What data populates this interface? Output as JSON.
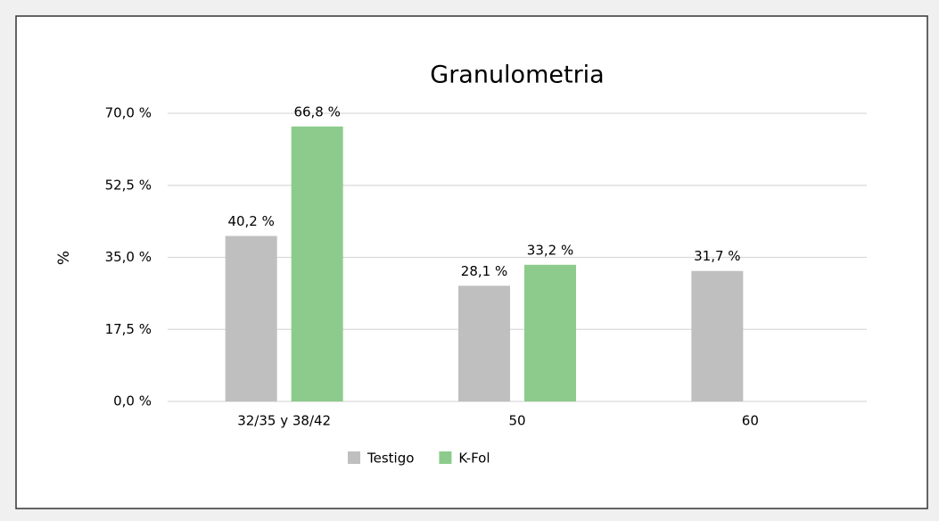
{
  "chart_data": {
    "type": "bar",
    "title": "Granulometria",
    "ylabel": "%",
    "categories": [
      "32/35 y 38/42",
      "50",
      "60"
    ],
    "series": [
      {
        "name": "Testigo",
        "color": "#bfbfbf",
        "values": [
          40.2,
          28.1,
          31.7
        ],
        "value_labels": [
          "40,2 %",
          "28,1 %",
          "31,7 %"
        ]
      },
      {
        "name": "K-Fol",
        "color": "#8ccb8c",
        "values": [
          66.8,
          33.2,
          null
        ],
        "value_labels": [
          "66,8 %",
          "33,2 %",
          null
        ]
      }
    ],
    "ylim": [
      0,
      70
    ],
    "yticks": [
      {
        "value": 0,
        "label": "0,0 %"
      },
      {
        "value": 17.5,
        "label": "17,5 %"
      },
      {
        "value": 35,
        "label": "35,0 %"
      },
      {
        "value": 52.5,
        "label": "52,5 %"
      },
      {
        "value": 70,
        "label": "70,0 %"
      }
    ],
    "grid": true,
    "legend": "bottom"
  }
}
